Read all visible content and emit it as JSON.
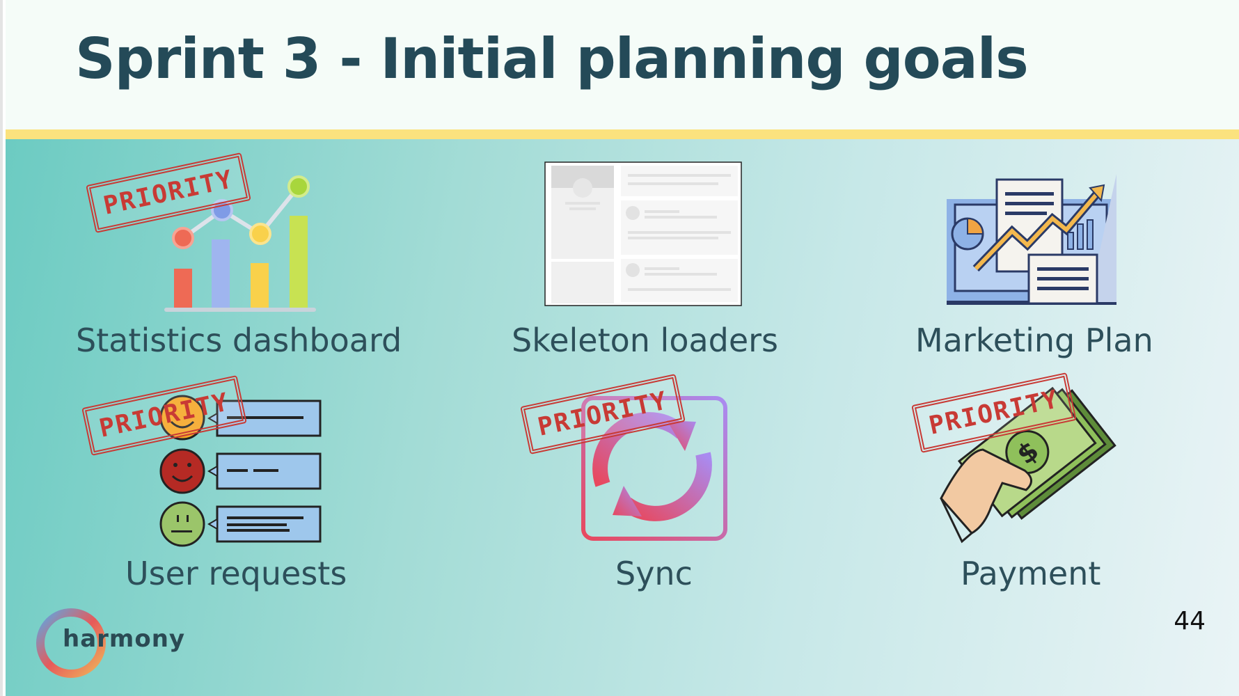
{
  "slide": {
    "title": "Sprint 3 - Initial planning goals",
    "page_number": "44"
  },
  "brand": {
    "logo_text": "harmony"
  },
  "colors": {
    "title": "#244a58",
    "band": "#fbe27e",
    "stamp": "#c83a35",
    "label": "#2d4f5a"
  },
  "stamp": {
    "text": "PRIORITY"
  },
  "goals": [
    {
      "label": "Statistics dashboard",
      "icon": "bar-chart-icon",
      "priority": true
    },
    {
      "label": "Skeleton loaders",
      "icon": "skeleton-loader-icon",
      "priority": false
    },
    {
      "label": "Marketing Plan",
      "icon": "marketing-plan-icon",
      "priority": false
    },
    {
      "label": "User requests",
      "icon": "feedback-faces-icon",
      "priority": true
    },
    {
      "label": "Sync",
      "icon": "sync-icon",
      "priority": true
    },
    {
      "label": "Payment",
      "icon": "payment-cash-icon",
      "priority": true
    }
  ]
}
